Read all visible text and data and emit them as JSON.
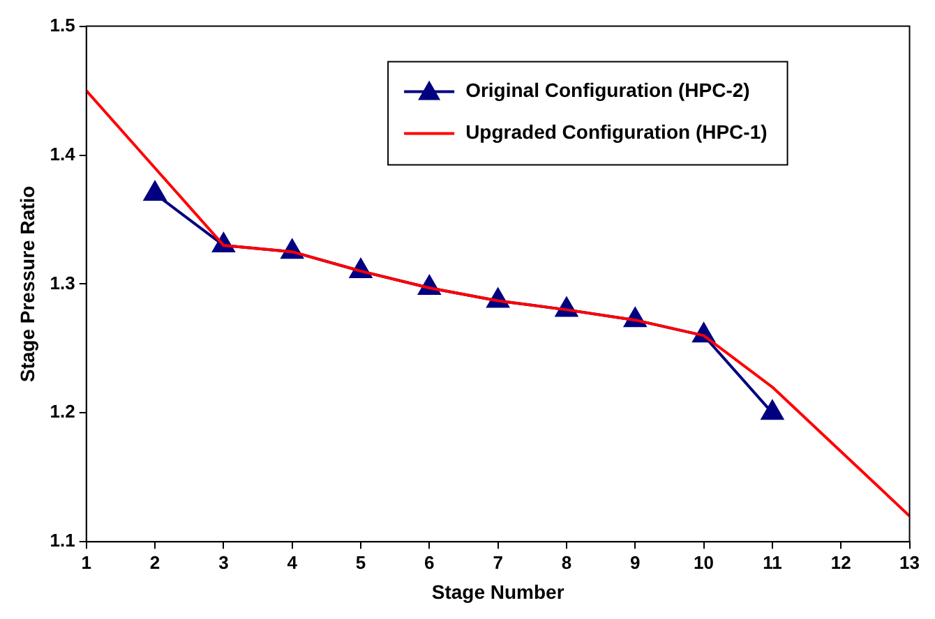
{
  "chart_data": {
    "type": "line",
    "xlabel": "Stage Number",
    "ylabel": "Stage Pressure Ratio",
    "x": [
      1,
      2,
      3,
      4,
      5,
      6,
      7,
      8,
      9,
      10,
      11,
      12,
      13
    ],
    "series": [
      {
        "name": "Original Configuration (HPC-2)",
        "color": "#000080",
        "marker": "triangle",
        "values": [
          null,
          1.37,
          1.33,
          1.325,
          1.31,
          1.297,
          1.287,
          1.28,
          1.272,
          1.26,
          1.2,
          null,
          null
        ]
      },
      {
        "name": "Upgraded Configuration (HPC-1)",
        "color": "#ff0000",
        "marker": "none",
        "values": [
          1.45,
          1.39,
          1.33,
          1.325,
          1.31,
          1.297,
          1.287,
          1.28,
          1.272,
          1.26,
          1.22,
          1.17,
          1.12
        ]
      }
    ],
    "xlim": [
      1,
      13
    ],
    "xticks": [
      1,
      2,
      3,
      4,
      5,
      6,
      7,
      8,
      9,
      10,
      11,
      12,
      13
    ],
    "ylim": [
      1.1,
      1.5
    ],
    "yticks": [
      1.1,
      1.2,
      1.3,
      1.4,
      1.5
    ],
    "grid": false,
    "legend": "top right"
  }
}
